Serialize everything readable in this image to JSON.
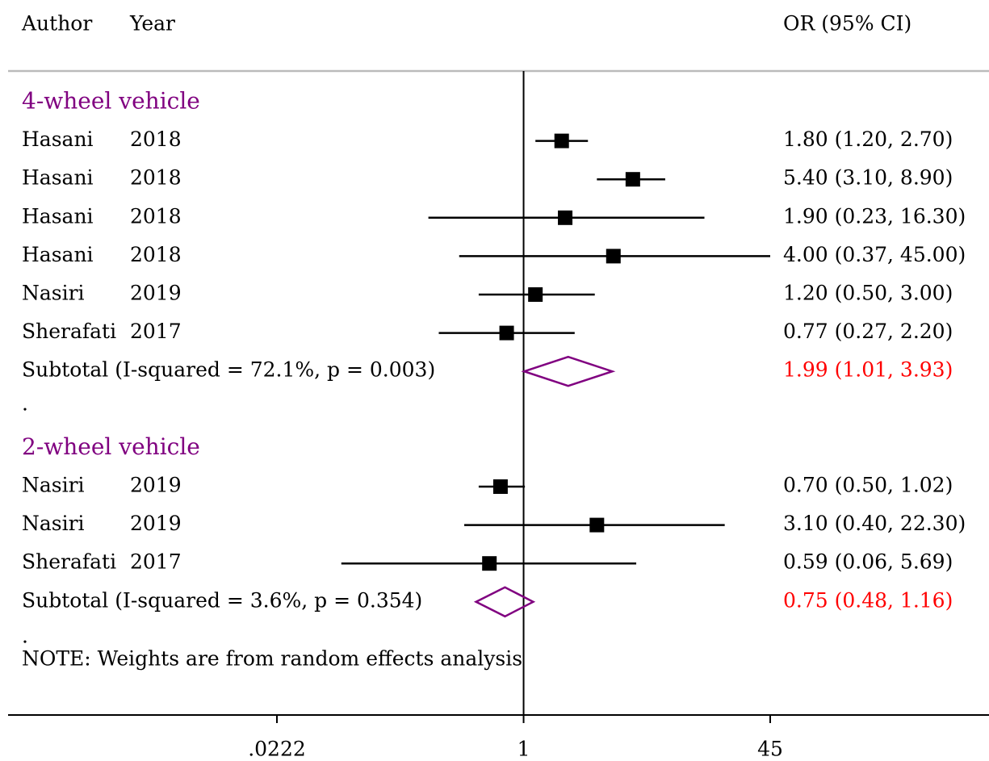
{
  "chart_data": {
    "type": "forest",
    "header": {
      "author": "Author",
      "year": "Year",
      "estimate": "OR (95% CI)"
    },
    "xscale": "log",
    "xlim": [
      0.0222,
      45
    ],
    "xticks": [
      {
        "value": 0.0222,
        "label": ".0222"
      },
      1,
      45
    ],
    "null_line": 1,
    "marker_color": "#000000",
    "diamond_color": "#800080",
    "group_color": "#800080",
    "subtotal_color": "#ff0000",
    "groups": [
      {
        "name": "4-wheel vehicle",
        "studies": [
          {
            "author": "Hasani",
            "year": "2018",
            "values": [
              1.8,
              1.2,
              2.7
            ],
            "label": "1.80 (1.20, 2.70)"
          },
          {
            "author": "Hasani",
            "year": "2018",
            "values": [
              5.4,
              3.1,
              8.9
            ],
            "label": "5.40 (3.10, 8.90)"
          },
          {
            "author": "Hasani",
            "year": "2018",
            "values": [
              1.9,
              0.23,
              16.3
            ],
            "label": "1.90 (0.23, 16.30)"
          },
          {
            "author": "Hasani",
            "year": "2018",
            "values": [
              4.0,
              0.37,
              45.0
            ],
            "label": "4.00 (0.37, 45.00)"
          },
          {
            "author": "Nasiri",
            "year": "2019",
            "values": [
              1.2,
              0.5,
              3.0
            ],
            "label": "1.20 (0.50, 3.00)"
          },
          {
            "author": "Sherafati",
            "year": "2017",
            "values": [
              0.77,
              0.27,
              2.2
            ],
            "label": "0.77 (0.27, 2.20)"
          }
        ],
        "subtotal": {
          "text": "Subtotal  (I-squared = 72.1%, p = 0.003)",
          "values": [
            1.99,
            1.01,
            3.93
          ],
          "label": "1.99 (1.01, 3.93)"
        },
        "separator": "."
      },
      {
        "name": "2-wheel vehicle",
        "studies": [
          {
            "author": "Nasiri",
            "year": "2019",
            "values": [
              0.7,
              0.5,
              1.02
            ],
            "label": "0.70 (0.50, 1.02)"
          },
          {
            "author": "Nasiri",
            "year": "2019",
            "values": [
              3.1,
              0.4,
              22.3
            ],
            "label": "3.10 (0.40, 22.30)"
          },
          {
            "author": "Sherafati",
            "year": "2017",
            "values": [
              0.59,
              0.06,
              5.69
            ],
            "label": "0.59 (0.06, 5.69)"
          }
        ],
        "subtotal": {
          "text": "Subtotal  (I-squared = 3.6%, p = 0.354)",
          "values": [
            0.75,
            0.48,
            1.16
          ],
          "label": "0.75 (0.48, 1.16)"
        },
        "separator": "."
      }
    ],
    "note": "NOTE: Weights are from random effects analysis"
  }
}
